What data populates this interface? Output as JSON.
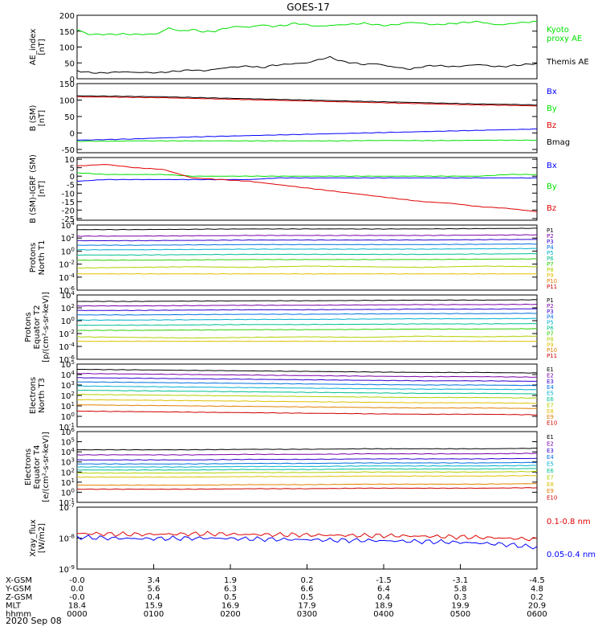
{
  "title": "GOES-17",
  "date_label": "2020 Sep 08",
  "colors": {
    "black": "#000000",
    "green": "#00e000",
    "blue": "#0000ff",
    "red": "#e00000",
    "P1": "#000000",
    "P2": "#7a00a8",
    "P3": "#3000d0",
    "P4": "#0070e0",
    "P5": "#00b0d0",
    "P6": "#00c090",
    "P7": "#30d000",
    "P8": "#b0d000",
    "P9": "#e0c000",
    "P10": "#e08000",
    "P11": "#d00000"
  },
  "chart_data": [
    {
      "type": "line",
      "id": "ae",
      "ylabel": "AE_index [nT]",
      "ylim": [
        0,
        200
      ],
      "yticks": [
        "0",
        "50",
        "100",
        "150",
        "200"
      ],
      "legend": [
        "Kyoto proxy AE",
        "Themis AE"
      ],
      "series": [
        {
          "name": "Kyoto proxy AE",
          "color": "green",
          "values": [
            155,
            140,
            140,
            140,
            141,
            140,
            140,
            142,
            160,
            150,
            155,
            148,
            150,
            160,
            165,
            162,
            170,
            165,
            168,
            175,
            170,
            165,
            168,
            170,
            172,
            175,
            170,
            168,
            172,
            178,
            175,
            170,
            172,
            175,
            178,
            180,
            172,
            170,
            175,
            178,
            180
          ]
        },
        {
          "name": "Themis AE",
          "color": "black",
          "values": [
            25,
            20,
            18,
            20,
            22,
            20,
            20,
            19,
            22,
            25,
            28,
            25,
            30,
            35,
            38,
            40,
            35,
            42,
            45,
            48,
            50,
            60,
            68,
            55,
            50,
            45,
            48,
            40,
            35,
            30,
            38,
            42,
            40,
            38,
            42,
            45,
            40,
            38,
            42,
            45,
            48
          ]
        }
      ]
    },
    {
      "type": "line",
      "id": "bsm",
      "ylabel": "B (SM) [nT]",
      "ylim": [
        -60,
        150
      ],
      "yticks": [
        "-50",
        "0",
        "50",
        "100",
        "150"
      ],
      "legend": [
        "Bx",
        "By",
        "Bz",
        "Bmag"
      ],
      "series": [
        {
          "name": "Bx",
          "color": "blue",
          "values": [
            -22,
            -20,
            -18,
            -15,
            -12,
            -10,
            -8,
            -6,
            -4,
            -2,
            0,
            2,
            4,
            6,
            8,
            10,
            12
          ]
        },
        {
          "name": "By",
          "color": "green",
          "values": [
            -25,
            -25,
            -24,
            -24,
            -24,
            -24,
            -24,
            -24,
            -24,
            -24,
            -23,
            -23,
            -23,
            -23,
            -22,
            -22,
            -22
          ]
        },
        {
          "name": "Bz",
          "color": "red",
          "values": [
            110,
            109,
            108,
            107,
            105,
            103,
            101,
            99,
            97,
            95,
            93,
            91,
            89,
            87,
            85,
            84,
            82
          ]
        },
        {
          "name": "Bmag",
          "color": "black",
          "values": [
            113,
            112,
            111,
            110,
            108,
            106,
            104,
            102,
            100,
            98,
            96,
            94,
            92,
            90,
            88,
            87,
            85
          ]
        }
      ]
    },
    {
      "type": "line",
      "id": "bigrf",
      "ylabel": "B (SM)-IGRF (SM) [nT]",
      "ylim": [
        -26,
        11
      ],
      "yticks": [
        "-25",
        "-20",
        "-15",
        "-10",
        "-5",
        "0",
        "5",
        "10"
      ],
      "legend": [
        "Bx",
        "By",
        "Bz"
      ],
      "series": [
        {
          "name": "Bx",
          "color": "blue",
          "values": [
            -3,
            -2,
            -2,
            -2,
            -2,
            -2,
            -2,
            -1,
            -1,
            -1,
            -1,
            -1,
            -1,
            -1,
            -1,
            -1,
            -1
          ]
        },
        {
          "name": "By",
          "color": "green",
          "values": [
            2,
            1,
            1,
            1,
            0,
            0,
            0,
            0,
            0,
            0,
            0,
            0,
            0,
            0,
            0,
            1,
            1
          ]
        },
        {
          "name": "Bz",
          "color": "red",
          "values": [
            6,
            7,
            5,
            4,
            -1,
            -2,
            -3,
            -5,
            -7,
            -9,
            -11,
            -13,
            -15,
            -16,
            -18,
            -19,
            -21
          ]
        }
      ]
    },
    {
      "type": "line",
      "id": "pt1",
      "ylabel": "Protons North T1",
      "yscale": "log",
      "ylim": [
        -6,
        4
      ],
      "yticks": [
        "10^-6",
        "10^-4",
        "10^-2",
        "10^0",
        "10^2",
        "10^4"
      ],
      "legend": [
        "P1",
        "P2",
        "P3",
        "P4",
        "P5",
        "P6",
        "P7",
        "P8",
        "P9",
        "P10",
        "P11"
      ],
      "series": [
        {
          "name": "P1",
          "color": "P1",
          "values": [
            3.3,
            3.3,
            3.35,
            3.4,
            3.4,
            3.4,
            3.4,
            3.45,
            3.5
          ]
        },
        {
          "name": "P2",
          "color": "P2",
          "values": [
            2.3,
            2.3,
            2.35,
            2.4,
            2.4,
            2.4,
            2.4,
            2.45,
            2.5
          ]
        },
        {
          "name": "P3",
          "color": "P3",
          "values": [
            1.6,
            1.6,
            1.65,
            1.7,
            1.7,
            1.7,
            1.7,
            1.75,
            1.8
          ]
        },
        {
          "name": "P4",
          "color": "P4",
          "values": [
            0.9,
            0.9,
            0.95,
            1.0,
            1.0,
            1.0,
            1.0,
            1.05,
            1.1
          ]
        },
        {
          "name": "P5",
          "color": "P5",
          "values": [
            0.2,
            0.2,
            0.25,
            0.3,
            0.3,
            0.3,
            0.3,
            0.35,
            0.4
          ]
        },
        {
          "name": "P6",
          "color": "P6",
          "values": [
            -0.6,
            -0.6,
            -0.55,
            -0.5,
            -0.5,
            -0.5,
            -0.5,
            -0.45,
            -0.4
          ]
        },
        {
          "name": "P7",
          "color": "P7",
          "values": [
            -1.4,
            -1.4,
            -1.35,
            -1.3,
            -1.3,
            -1.3,
            -1.3,
            -1.25,
            -1.2
          ]
        },
        {
          "name": "P8",
          "color": "P8",
          "values": [
            -2.6,
            -2.5,
            -2.4,
            -2.5,
            -2.3,
            -2.4,
            -2.5,
            -2.3,
            -2.4
          ]
        },
        {
          "name": "P9",
          "color": "P9",
          "values": [
            -3.5,
            -3.5,
            -3.5,
            -3.5,
            -3.5,
            -3.5,
            -3.5,
            -3.5,
            -3.5
          ]
        }
      ]
    },
    {
      "type": "line",
      "id": "pt2",
      "ylabel": "Protons Equator T2 [p/(cm²-s-sr-keV)]",
      "yscale": "log",
      "ylim": [
        -6,
        4
      ],
      "yticks": [
        "10^-6",
        "10^-4",
        "10^-2",
        "10^0",
        "10^2",
        "10^4"
      ],
      "legend": [
        "P1",
        "P2",
        "P3",
        "P4",
        "P5",
        "P6",
        "P7",
        "P8",
        "P9",
        "P10",
        "P11"
      ],
      "series": [
        {
          "name": "P1",
          "color": "P1",
          "values": [
            3.0,
            3.0,
            3.05,
            3.1,
            3.1,
            3.15,
            3.2,
            3.2,
            3.25
          ]
        },
        {
          "name": "P2",
          "color": "P2",
          "values": [
            2.3,
            2.3,
            2.35,
            2.4,
            2.4,
            2.45,
            2.5,
            2.5,
            2.55
          ]
        },
        {
          "name": "P3",
          "color": "P3",
          "values": [
            1.6,
            1.6,
            1.65,
            1.7,
            1.7,
            1.75,
            1.8,
            1.8,
            1.85
          ]
        },
        {
          "name": "P4",
          "color": "P4",
          "values": [
            0.9,
            0.9,
            0.95,
            1.0,
            1.0,
            1.05,
            1.1,
            1.1,
            1.15
          ]
        },
        {
          "name": "P5",
          "color": "P5",
          "values": [
            0.1,
            0.1,
            0.15,
            0.2,
            0.2,
            0.25,
            0.3,
            0.3,
            0.35
          ]
        },
        {
          "name": "P6",
          "color": "P6",
          "values": [
            -0.7,
            -0.7,
            -0.65,
            -0.6,
            -0.6,
            -0.55,
            -0.5,
            -0.5,
            -0.45
          ]
        },
        {
          "name": "P7",
          "color": "P7",
          "values": [
            -1.5,
            -1.5,
            -1.45,
            -1.4,
            -1.4,
            -1.35,
            -1.3,
            -1.3,
            -1.25
          ]
        },
        {
          "name": "P8",
          "color": "P8",
          "values": [
            -2.5,
            -2.6,
            -2.7,
            -2.6,
            -2.5,
            -2.6,
            -2.4,
            -2.5,
            -2.4
          ]
        },
        {
          "name": "P9",
          "color": "P9",
          "values": [
            -3.2,
            -3.2,
            -3.2,
            -3.2,
            -3.2,
            -3.2,
            -3.2,
            -3.2,
            -3.2
          ]
        }
      ]
    },
    {
      "type": "line",
      "id": "et3",
      "ylabel": "Electrons North T3",
      "yscale": "log",
      "ylim": [
        -1,
        5
      ],
      "yticks": [
        "10^-1",
        "10^0",
        "10^1",
        "10^2",
        "10^3",
        "10^4",
        "10^5"
      ],
      "legend": [
        "E1",
        "E2",
        "E3",
        "E4",
        "E5",
        "E6",
        "E7",
        "E8",
        "E9",
        "E10"
      ],
      "series": [
        {
          "name": "E1",
          "color": "P1",
          "values": [
            4.5,
            4.45,
            4.4,
            4.35,
            4.3,
            4.25,
            4.2,
            4.2,
            4.15
          ]
        },
        {
          "name": "E2",
          "color": "P2",
          "values": [
            4.1,
            4.05,
            4.0,
            3.95,
            3.9,
            3.85,
            3.8,
            3.8,
            3.75
          ]
        },
        {
          "name": "E3",
          "color": "P3",
          "values": [
            3.7,
            3.65,
            3.6,
            3.55,
            3.5,
            3.45,
            3.4,
            3.4,
            3.35
          ]
        },
        {
          "name": "E4",
          "color": "P4",
          "values": [
            3.3,
            3.25,
            3.2,
            3.15,
            3.1,
            3.05,
            3.0,
            3.0,
            2.95
          ]
        },
        {
          "name": "E5",
          "color": "P5",
          "values": [
            2.9,
            2.85,
            2.8,
            2.75,
            2.7,
            2.65,
            2.6,
            2.6,
            2.55
          ]
        },
        {
          "name": "E6",
          "color": "P6",
          "values": [
            2.5,
            2.45,
            2.4,
            2.35,
            2.3,
            2.25,
            2.2,
            2.2,
            2.15
          ]
        },
        {
          "name": "E7",
          "color": "P8",
          "values": [
            2.1,
            2.05,
            2.0,
            1.95,
            1.9,
            1.85,
            1.8,
            1.8,
            1.75
          ]
        },
        {
          "name": "E8",
          "color": "P9",
          "values": [
            1.6,
            1.55,
            1.5,
            1.45,
            1.4,
            1.35,
            1.3,
            1.3,
            1.25
          ]
        },
        {
          "name": "E9",
          "color": "P10",
          "values": [
            1.1,
            1.05,
            1.0,
            0.95,
            0.9,
            0.85,
            0.8,
            0.8,
            0.75
          ]
        },
        {
          "name": "E10",
          "color": "P11",
          "values": [
            0.5,
            0.45,
            0.4,
            0.35,
            0.3,
            0.25,
            0.2,
            0.2,
            0.15
          ]
        }
      ]
    },
    {
      "type": "line",
      "id": "et4",
      "ylabel": "Electrons Equator T4 [e/(cm²-s-sr-keV)]",
      "yscale": "log",
      "ylim": [
        -1,
        6
      ],
      "yticks": [
        "10^-1",
        "10^0",
        "10^1",
        "10^2",
        "10^3",
        "10^4",
        "10^5",
        "10^6"
      ],
      "legend": [
        "E1",
        "E2",
        "E3",
        "E4",
        "E5",
        "E6",
        "E7",
        "E8",
        "E9",
        "E10"
      ],
      "series": [
        {
          "name": "E1",
          "color": "P1",
          "values": [
            4.2,
            4.2,
            4.2,
            4.25,
            4.25,
            4.3,
            4.3,
            4.3,
            4.35
          ]
        },
        {
          "name": "E2",
          "color": "P2",
          "values": [
            3.7,
            3.7,
            3.7,
            3.75,
            3.75,
            3.8,
            3.8,
            3.8,
            3.85
          ]
        },
        {
          "name": "E3",
          "color": "P3",
          "values": [
            3.2,
            3.2,
            3.2,
            3.25,
            3.25,
            3.3,
            3.3,
            3.3,
            3.35
          ]
        },
        {
          "name": "E4",
          "color": "P4",
          "values": [
            2.8,
            2.8,
            2.8,
            2.85,
            2.85,
            2.9,
            2.9,
            2.9,
            2.95
          ]
        },
        {
          "name": "E5",
          "color": "P5",
          "values": [
            2.5,
            2.5,
            2.5,
            2.55,
            2.55,
            2.6,
            2.6,
            2.6,
            2.65
          ]
        },
        {
          "name": "E6",
          "color": "P6",
          "values": [
            2.2,
            2.2,
            2.2,
            2.25,
            2.25,
            2.3,
            2.3,
            2.3,
            2.35
          ]
        },
        {
          "name": "E7",
          "color": "P8",
          "values": [
            1.9,
            1.9,
            1.9,
            1.95,
            1.95,
            2.0,
            2.0,
            2.0,
            2.05
          ]
        },
        {
          "name": "E8",
          "color": "P9",
          "values": [
            1.5,
            1.5,
            1.5,
            1.55,
            1.55,
            1.6,
            1.6,
            1.6,
            1.65
          ]
        },
        {
          "name": "E9",
          "color": "P10",
          "values": [
            0.7,
            0.7,
            0.7,
            0.75,
            0.75,
            0.8,
            0.8,
            0.8,
            0.85
          ]
        },
        {
          "name": "E10",
          "color": "P11",
          "values": [
            0.3,
            0.3,
            0.3,
            0.35,
            0.35,
            0.4,
            0.4,
            0.4,
            0.45
          ]
        }
      ]
    },
    {
      "type": "line",
      "id": "xray",
      "ylabel": "Xray_flux [W/m2]",
      "yscale": "log",
      "ylim": [
        -9,
        -7
      ],
      "yticks": [
        "10^-9",
        "10^-8",
        "10^-7"
      ],
      "legend": [
        "0.1-0.8 nm",
        "0.05-0.4 nm"
      ],
      "series": [
        {
          "name": "0.1-0.8 nm",
          "color": "red",
          "values": [
            -7.85,
            -7.87,
            -7.88,
            -7.87,
            -7.86,
            -7.88,
            -7.89,
            -7.9,
            -7.91,
            -7.92,
            -7.93,
            -7.95,
            -7.97,
            -8.0,
            -8.04
          ]
        },
        {
          "name": "0.05-0.4 nm",
          "color": "blue",
          "values": [
            -7.97,
            -8.0,
            -8.02,
            -8.01,
            -8.0,
            -8.02,
            -8.04,
            -8.05,
            -8.07,
            -8.08,
            -8.1,
            -8.12,
            -8.15,
            -8.2,
            -8.3
          ]
        }
      ]
    }
  ],
  "xaxis": {
    "rows": [
      {
        "label": "X-GSM",
        "values": [
          "-0.0",
          "3.4",
          "1.9",
          "0.2",
          "-1.5",
          "-3.1",
          "-4.5"
        ]
      },
      {
        "label": "Y-GSM",
        "values": [
          "0.0",
          "5.6",
          "6.3",
          "6.6",
          "6.4",
          "5.8",
          "4.8"
        ]
      },
      {
        "label": "Z-GSM",
        "values": [
          "-0.0",
          "0.4",
          "0.5",
          "0.5",
          "0.4",
          "0.3",
          "0.2"
        ]
      },
      {
        "label": "MLT",
        "values": [
          "18.4",
          "15.9",
          "16.9",
          "17.9",
          "18.9",
          "19.9",
          "20.9"
        ]
      },
      {
        "label": "hhmm",
        "values": [
          "0000",
          "0100",
          "0200",
          "0300",
          "0400",
          "0500",
          "0600"
        ]
      }
    ]
  }
}
